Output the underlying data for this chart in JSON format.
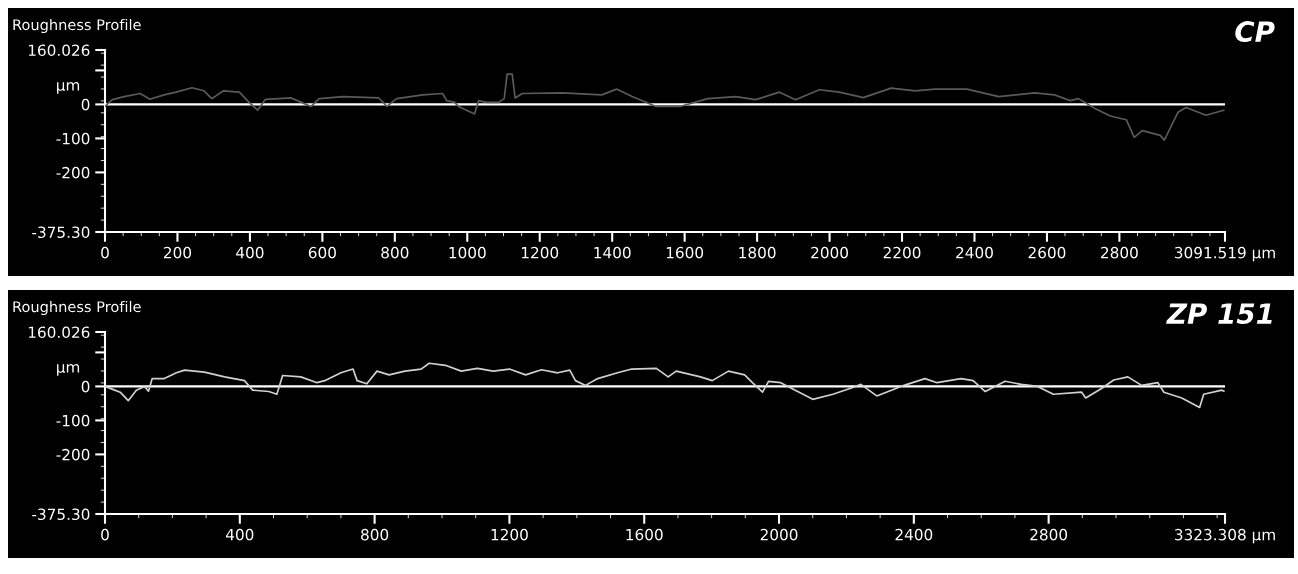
{
  "chart_data": [
    {
      "type": "line",
      "title": "Roughness Profile",
      "ylabel": "µm",
      "annotations": [
        "CP"
      ],
      "xlim": [
        0,
        3091.519
      ],
      "xticks": [
        0,
        200,
        400,
        600,
        800,
        1000,
        1200,
        1400,
        1600,
        1800,
        2000,
        2200,
        2400,
        2600,
        2800,
        {
          "value": 3091.519,
          "label": "3091.519 µm"
        }
      ],
      "ylim": [
        -375.3,
        160.026
      ],
      "yticks": [
        {
          "value": 160.026,
          "label": "160.026"
        },
        {
          "value": 100,
          "label": null
        },
        0,
        -100,
        -200,
        {
          "value": -375.3,
          "label": "-375.30"
        }
      ],
      "grid": false,
      "ref_lines": [
        {
          "axis": "y",
          "value": 0,
          "color": "#ffffff"
        }
      ],
      "series": [
        {
          "color": "#5a5a5a",
          "x": [
            0,
            20,
            53,
            97,
            124,
            163,
            196,
            240,
            273,
            295,
            327,
            371,
            393,
            421,
            443,
            514,
            542,
            569,
            591,
            657,
            756,
            778,
            805,
            877,
            932,
            943,
            965,
            976,
            1020,
            1031,
            1053,
            1086,
            1102,
            1110,
            1124,
            1132,
            1152,
            1262,
            1371,
            1412,
            1455,
            1521,
            1587,
            1664,
            1741,
            1796,
            1862,
            1906,
            1972,
            2027,
            2093,
            2170,
            2236,
            2291,
            2379,
            2467,
            2566,
            2621,
            2665,
            2687,
            2731,
            2775,
            2819,
            2841,
            2863,
            2913,
            2924,
            2962,
            2984,
            3039,
            3088
          ],
          "values": [
            -6,
            14,
            23,
            32,
            15,
            28,
            36,
            49,
            40,
            17,
            40,
            36,
            11,
            -17,
            15,
            19,
            6,
            -6,
            17,
            23,
            19,
            -6,
            17,
            28,
            32,
            11,
            6,
            -6,
            -28,
            11,
            6,
            6,
            17,
            89,
            89,
            19,
            32,
            34,
            28,
            45,
            23,
            -6,
            -6,
            17,
            23,
            14,
            36,
            14,
            43,
            36,
            20,
            48,
            40,
            45,
            45,
            23,
            34,
            28,
            11,
            17,
            -11,
            -34,
            -45,
            -97,
            -77,
            -91,
            -105,
            -23,
            -9,
            -32,
            -17
          ]
        }
      ]
    },
    {
      "type": "line",
      "title": "Roughness Profile",
      "ylabel": "µm",
      "annotations": [
        "ZP 151"
      ],
      "xlim": [
        0,
        3323.308
      ],
      "xticks": [
        0,
        400,
        800,
        1200,
        1600,
        2000,
        2400,
        2800,
        {
          "value": 3323.308,
          "label": "3323.308 µm"
        }
      ],
      "ylim": [
        -375.3,
        160.026
      ],
      "yticks": [
        {
          "value": 160.026,
          "label": "160.026"
        },
        {
          "value": 100,
          "label": null
        },
        0,
        -100,
        -200,
        {
          "value": -375.3,
          "label": "-375.30"
        }
      ],
      "grid": false,
      "ref_lines": [
        {
          "axis": "y",
          "value": 0,
          "color": "#ffffff"
        }
      ],
      "series": [
        {
          "color": "#d0d0d0",
          "x": [
            0,
            21,
            45,
            69,
            93,
            117,
            129,
            140,
            176,
            212,
            236,
            295,
            355,
            414,
            438,
            486,
            510,
            527,
            581,
            629,
            652,
            700,
            736,
            748,
            777,
            807,
            843,
            890,
            938,
            962,
            1010,
            1057,
            1105,
            1152,
            1200,
            1248,
            1295,
            1343,
            1379,
            1396,
            1426,
            1462,
            1521,
            1563,
            1636,
            1671,
            1695,
            1767,
            1802,
            1850,
            1898,
            1921,
            1951,
            1969,
            2005,
            2100,
            2160,
            2219,
            2243,
            2290,
            2362,
            2433,
            2469,
            2540,
            2576,
            2612,
            2671,
            2719,
            2767,
            2814,
            2898,
            2910,
            2957,
            2993,
            3035,
            3076,
            3124,
            3142,
            3195,
            3248,
            3260,
            3314,
            3320
          ],
          "values": [
            0,
            -8,
            -17,
            -42,
            -11,
            0,
            -14,
            23,
            23,
            40,
            48,
            42,
            28,
            17,
            -11,
            -15,
            -23,
            32,
            28,
            11,
            17,
            40,
            51,
            17,
            8,
            45,
            34,
            45,
            51,
            68,
            62,
            45,
            53,
            45,
            51,
            34,
            49,
            40,
            48,
            17,
            3,
            23,
            40,
            51,
            53,
            28,
            45,
            28,
            17,
            45,
            34,
            11,
            -17,
            15,
            11,
            -38,
            -23,
            -3,
            6,
            -28,
            0,
            23,
            11,
            23,
            17,
            -15,
            15,
            6,
            0,
            -23,
            -17,
            -34,
            -6,
            19,
            28,
            3,
            11,
            -17,
            -34,
            -62,
            -23,
            -11,
            -14
          ]
        }
      ]
    }
  ]
}
